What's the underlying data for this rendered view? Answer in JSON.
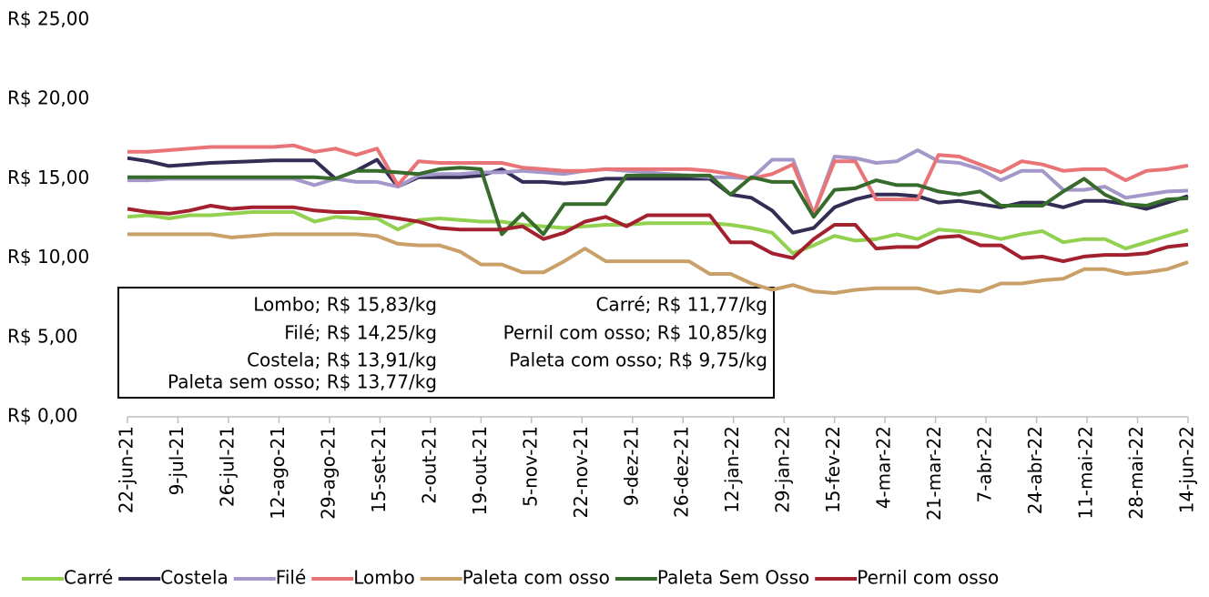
{
  "chart_data": {
    "type": "line",
    "x": [
      "22-jun-21",
      "29-jun-21",
      "6-jul-21",
      "13-jul-21",
      "20-jul-21",
      "27-jul-21",
      "3-ago-21",
      "10-ago-21",
      "17-ago-21",
      "24-ago-21",
      "31-ago-21",
      "7-set-21",
      "14-set-21",
      "21-set-21",
      "28-set-21",
      "5-out-21",
      "12-out-21",
      "19-out-21",
      "26-out-21",
      "2-nov-21",
      "9-nov-21",
      "16-nov-21",
      "23-nov-21",
      "30-nov-21",
      "7-dez-21",
      "14-dez-21",
      "21-dez-21",
      "28-dez-21",
      "4-jan-22",
      "11-jan-22",
      "18-jan-22",
      "25-jan-22",
      "1-fev-22",
      "8-fev-22",
      "15-fev-22",
      "22-fev-22",
      "1-mar-22",
      "8-mar-22",
      "15-mar-22",
      "22-mar-22",
      "29-mar-22",
      "5-abr-22",
      "12-abr-22",
      "19-abr-22",
      "26-abr-22",
      "3-mai-22",
      "10-mai-22",
      "17-mai-22",
      "24-mai-22",
      "31-mai-22",
      "7-jun-22",
      "14-jun-22"
    ],
    "xlim": [
      "22-jun-21",
      "14-jun-22"
    ],
    "xticks": [
      "22-jun-21",
      "9-jul-21",
      "26-jul-21",
      "12-ago-21",
      "29-ago-21",
      "15-set-21",
      "2-out-21",
      "19-out-21",
      "5-nov-21",
      "22-nov-21",
      "9-dez-21",
      "26-dez-21",
      "12-jan-22",
      "29-jan-22",
      "15-fev-22",
      "4-mar-22",
      "21-mar-22",
      "7-abr-22",
      "24-abr-22",
      "11-mai-22",
      "28-mai-22",
      "14-jun-22"
    ],
    "ylim": [
      0,
      25
    ],
    "yticks": [
      {
        "value": 0,
        "label": "R$ 0,00"
      },
      {
        "value": 5,
        "label": "R$ 5,00"
      },
      {
        "value": 10,
        "label": "R$ 10,00"
      },
      {
        "value": 15,
        "label": "R$ 15,00"
      },
      {
        "value": 20,
        "label": "R$ 20,00"
      },
      {
        "value": 25,
        "label": "R$ 25,00"
      }
    ],
    "grid": false,
    "legend": "bottom",
    "series": [
      {
        "name": "Carré",
        "color": "#92d050",
        "values": [
          12.6,
          12.7,
          12.5,
          12.7,
          12.7,
          12.8,
          12.9,
          12.9,
          12.9,
          12.3,
          12.6,
          12.5,
          12.5,
          11.8,
          12.4,
          12.5,
          12.4,
          12.3,
          12.3,
          12.1,
          12.0,
          11.9,
          12.0,
          12.1,
          12.1,
          12.2,
          12.2,
          12.2,
          12.2,
          12.1,
          11.9,
          11.6,
          10.3,
          10.8,
          11.4,
          11.1,
          11.2,
          11.5,
          11.2,
          11.8,
          11.7,
          11.5,
          11.2,
          11.5,
          11.7,
          11.0,
          11.2,
          11.2,
          10.6,
          11.0,
          11.4,
          11.77
        ]
      },
      {
        "name": "Costela",
        "color": "#332c54",
        "values": [
          16.3,
          16.1,
          15.8,
          15.9,
          16.0,
          16.05,
          16.1,
          16.15,
          16.15,
          16.15,
          15.0,
          15.5,
          16.2,
          14.5,
          15.1,
          15.1,
          15.1,
          15.2,
          15.6,
          14.8,
          14.8,
          14.7,
          14.8,
          15.0,
          15.0,
          15.0,
          15.0,
          15.0,
          15.0,
          14.0,
          13.8,
          13.0,
          11.6,
          11.9,
          13.2,
          13.7,
          14.0,
          14.0,
          13.9,
          13.5,
          13.6,
          13.4,
          13.2,
          13.5,
          13.5,
          13.2,
          13.6,
          13.6,
          13.4,
          13.1,
          13.5,
          13.91
        ]
      },
      {
        "name": "Filé",
        "color": "#a497c9",
        "values": [
          14.9,
          14.9,
          15.0,
          15.0,
          15.0,
          15.0,
          15.0,
          15.0,
          15.0,
          14.6,
          15.0,
          14.8,
          14.8,
          14.5,
          15.2,
          15.3,
          15.3,
          15.4,
          15.4,
          15.5,
          15.4,
          15.3,
          15.5,
          15.6,
          15.5,
          15.4,
          15.3,
          15.2,
          15.1,
          15.1,
          15.0,
          16.2,
          16.2,
          12.8,
          16.4,
          16.3,
          16.0,
          16.1,
          16.8,
          16.1,
          16.0,
          15.6,
          14.9,
          15.5,
          15.5,
          14.3,
          14.3,
          14.5,
          13.8,
          14.0,
          14.2,
          14.25
        ]
      },
      {
        "name": "Lombo",
        "color": "#e87477",
        "values": [
          16.7,
          16.7,
          16.8,
          16.9,
          17.0,
          17.0,
          17.0,
          17.0,
          17.1,
          16.7,
          16.9,
          16.5,
          16.9,
          14.6,
          16.1,
          16.0,
          16.0,
          16.0,
          16.0,
          15.7,
          15.6,
          15.5,
          15.5,
          15.6,
          15.6,
          15.6,
          15.6,
          15.6,
          15.5,
          15.3,
          15.0,
          15.3,
          15.9,
          12.8,
          16.1,
          16.1,
          13.7,
          13.7,
          13.7,
          16.5,
          16.4,
          15.9,
          15.4,
          16.1,
          15.9,
          15.5,
          15.6,
          15.6,
          14.9,
          15.5,
          15.6,
          15.83
        ]
      },
      {
        "name": "Paleta com osso",
        "color": "#c9a068",
        "values": [
          11.5,
          11.5,
          11.5,
          11.5,
          11.5,
          11.3,
          11.4,
          11.5,
          11.5,
          11.5,
          11.5,
          11.5,
          11.4,
          10.9,
          10.8,
          10.8,
          10.4,
          9.6,
          9.6,
          9.1,
          9.1,
          9.8,
          10.6,
          9.8,
          9.8,
          9.8,
          9.8,
          9.8,
          9.0,
          9.0,
          8.4,
          8.0,
          8.3,
          7.9,
          7.8,
          8.0,
          8.1,
          8.1,
          8.1,
          7.8,
          8.0,
          7.9,
          8.4,
          8.4,
          8.6,
          8.7,
          9.3,
          9.3,
          9.0,
          9.1,
          9.3,
          9.75
        ]
      },
      {
        "name": "Paleta Sem Osso",
        "color": "#376b2c",
        "values": [
          15.1,
          15.1,
          15.1,
          15.1,
          15.1,
          15.1,
          15.1,
          15.1,
          15.1,
          15.1,
          15.0,
          15.5,
          15.5,
          15.4,
          15.3,
          15.6,
          15.7,
          15.6,
          11.5,
          12.8,
          11.5,
          13.4,
          13.4,
          13.4,
          15.2,
          15.2,
          15.2,
          15.2,
          15.2,
          14.0,
          15.1,
          14.8,
          14.8,
          12.6,
          14.3,
          14.4,
          14.9,
          14.6,
          14.6,
          14.2,
          14.0,
          14.2,
          13.3,
          13.3,
          13.3,
          14.2,
          15.0,
          14.0,
          13.4,
          13.3,
          13.7,
          13.77
        ]
      },
      {
        "name": "Pernil com osso",
        "color": "#a3202e",
        "values": [
          13.1,
          12.9,
          12.8,
          13.0,
          13.3,
          13.1,
          13.2,
          13.2,
          13.2,
          13.0,
          12.9,
          12.9,
          12.7,
          12.5,
          12.3,
          11.9,
          11.8,
          11.8,
          11.8,
          12.0,
          11.2,
          11.6,
          12.3,
          12.6,
          12.0,
          12.7,
          12.7,
          12.7,
          12.7,
          11.0,
          11.0,
          10.3,
          10.0,
          11.2,
          12.1,
          12.1,
          10.6,
          10.7,
          10.7,
          11.3,
          11.4,
          10.8,
          10.8,
          10.0,
          10.1,
          9.8,
          10.1,
          10.2,
          10.2,
          10.3,
          10.7,
          10.85
        ]
      }
    ],
    "annotations": [
      "Lombo; R$ 15,83/kg",
      "Filé; R$ 14,25/kg",
      "Costela; R$ 13,91/kg",
      "Paleta sem osso; R$ 13,77/kg",
      "Carré; R$ 11,77/kg",
      "Pernil com osso; R$ 10,85/kg",
      "Paleta com osso; R$ 9,75/kg"
    ]
  }
}
